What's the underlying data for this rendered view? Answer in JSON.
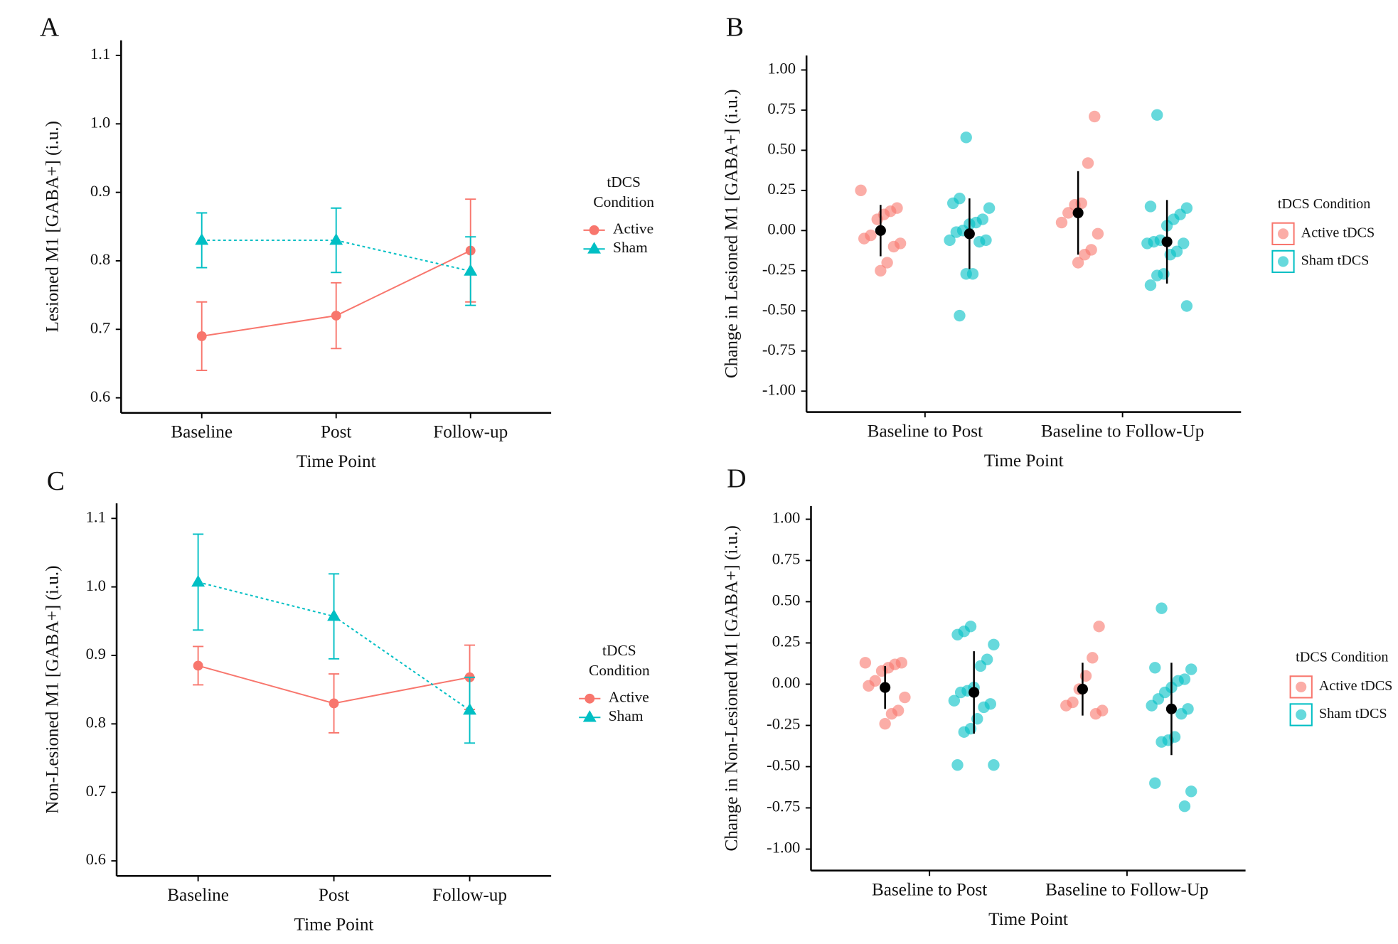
{
  "chart_data": [
    {
      "type": "line",
      "panel": "A",
      "x_label": "Time Point",
      "y_label": "Lesioned M1 [GABA+] (i.u.)",
      "legend_title": [
        "tDCS",
        "Condition"
      ],
      "categories": [
        "Baseline",
        "Post",
        "Follow-up"
      ],
      "series": [
        {
          "name": "Active",
          "color": "#F8766D",
          "marker": "circle",
          "dashed": false,
          "values": [
            0.69,
            0.72,
            0.815
          ],
          "errors": [
            0.05,
            0.048,
            0.075
          ]
        },
        {
          "name": "Sham",
          "color": "#00BFC4",
          "marker": "triangle",
          "dashed": true,
          "values": [
            0.83,
            0.83,
            0.785
          ],
          "errors": [
            0.04,
            0.047,
            0.05
          ]
        }
      ],
      "ylim": [
        0.578,
        1.122
      ],
      "yticks": [
        0.6,
        0.7,
        0.8,
        0.9,
        {
          "value": 1,
          "label": "1.0"
        },
        1.1
      ]
    },
    {
      "type": "violin",
      "panel": "B",
      "x_label": "Time Point",
      "y_label": "Change in Lesioned M1 [GABA+] (i.u.)",
      "legend_title": [
        "tDCS Condition"
      ],
      "categories": [
        "Baseline to Post",
        "Baseline to Follow-Up"
      ],
      "series": [
        {
          "name": "Active tDCS",
          "color": "#F8766D",
          "points": [
            [
              0.25,
              0.14,
              0.12,
              0.1,
              0.07,
              -0.03,
              -0.05,
              -0.08,
              -0.1,
              -0.2,
              -0.25
            ],
            [
              0.71,
              0.42,
              0.17,
              0.16,
              0.11,
              0.05,
              -0.02,
              -0.12,
              -0.15,
              -0.2
            ]
          ],
          "means": [
            0.0,
            0.11
          ],
          "errors": [
            0.16,
            0.26
          ]
        },
        {
          "name": "Sham tDCS",
          "color": "#00BFC4",
          "points": [
            [
              0.58,
              0.2,
              0.17,
              0.14,
              0.07,
              0.05,
              0.04,
              0.0,
              -0.01,
              -0.06,
              -0.06,
              -0.07,
              -0.27,
              -0.27,
              -0.53
            ],
            [
              0.72,
              0.15,
              0.14,
              0.1,
              0.07,
              0.03,
              -0.06,
              -0.07,
              -0.08,
              -0.08,
              -0.13,
              -0.15,
              -0.27,
              -0.28,
              -0.34,
              -0.47
            ]
          ],
          "means": [
            -0.02,
            -0.07
          ],
          "errors": [
            0.22,
            0.26
          ]
        }
      ],
      "ylim": [
        -1.13,
        1.09
      ],
      "yticks": [
        {
          "value": -1,
          "label": "-1.00"
        },
        -0.75,
        {
          "value": -0.5,
          "label": "-0.50"
        },
        -0.25,
        {
          "value": 0,
          "label": "0.00"
        },
        0.25,
        {
          "value": 0.5,
          "label": "0.50"
        },
        0.75,
        {
          "value": 1,
          "label": "1.00"
        }
      ]
    },
    {
      "type": "line",
      "panel": "C",
      "x_label": "Time Point",
      "y_label": "Non-Lesioned M1 [GABA+] (i.u.)",
      "legend_title": [
        "tDCS",
        "Condition"
      ],
      "categories": [
        "Baseline",
        "Post",
        "Follow-up"
      ],
      "series": [
        {
          "name": "Active",
          "color": "#F8766D",
          "marker": "circle",
          "dashed": false,
          "values": [
            0.885,
            0.83,
            0.868
          ],
          "errors": [
            0.028,
            0.043,
            0.047
          ]
        },
        {
          "name": "Sham",
          "color": "#00BFC4",
          "marker": "triangle",
          "dashed": true,
          "values": [
            1.007,
            0.957,
            0.82
          ],
          "errors": [
            0.07,
            0.062,
            0.048
          ]
        }
      ],
      "ylim": [
        0.578,
        1.122
      ],
      "yticks": [
        0.6,
        0.7,
        0.8,
        0.9,
        {
          "value": 1,
          "label": "1.0"
        },
        1.1
      ]
    },
    {
      "type": "violin",
      "panel": "D",
      "x_label": "Time Point",
      "y_label": "Change in Non-Lesioned M1 [GABA+] (i.u.)",
      "legend_title": [
        "tDCS Condition"
      ],
      "categories": [
        "Baseline to Post",
        "Baseline to Follow-Up"
      ],
      "series": [
        {
          "name": "Active tDCS",
          "color": "#F8766D",
          "points": [
            [
              0.13,
              0.13,
              0.12,
              0.1,
              0.08,
              0.02,
              -0.01,
              -0.08,
              -0.16,
              -0.18,
              -0.24
            ],
            [
              0.35,
              0.16,
              0.05,
              -0.03,
              -0.11,
              -0.13,
              -0.16,
              -0.18
            ]
          ],
          "means": [
            -0.02,
            -0.03
          ],
          "errors": [
            0.13,
            0.16
          ]
        },
        {
          "name": "Sham tDCS",
          "color": "#00BFC4",
          "points": [
            [
              0.35,
              0.32,
              0.3,
              0.24,
              0.15,
              0.11,
              -0.02,
              -0.04,
              -0.05,
              -0.1,
              -0.12,
              -0.14,
              -0.21,
              -0.27,
              -0.29,
              -0.49,
              -0.49
            ],
            [
              0.46,
              0.1,
              0.09,
              0.03,
              0.02,
              -0.02,
              -0.05,
              -0.09,
              -0.13,
              -0.15,
              -0.18,
              -0.32,
              -0.34,
              -0.35,
              -0.6,
              -0.65,
              -0.74
            ]
          ],
          "means": [
            -0.05,
            -0.15
          ],
          "errors": [
            0.25,
            0.28
          ]
        }
      ],
      "ylim": [
        -1.13,
        1.08
      ],
      "yticks": [
        {
          "value": -1,
          "label": "-1.00"
        },
        -0.75,
        {
          "value": -0.5,
          "label": "-0.50"
        },
        -0.25,
        {
          "value": 0,
          "label": "0.00"
        },
        0.25,
        {
          "value": 0.5,
          "label": "0.50"
        },
        0.75,
        {
          "value": 1,
          "label": "1.00"
        }
      ]
    }
  ]
}
